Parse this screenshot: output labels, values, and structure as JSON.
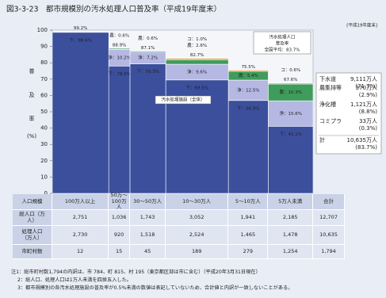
{
  "chart_data": {
    "type": "bar",
    "stacked": true,
    "title": "図3-3-23　都市規模別の汚水処理人口普及率（平成19年度末）",
    "period_label": "[平成19年度末]",
    "ylabel": [
      "普",
      "及",
      "率",
      "(%)"
    ],
    "ylim": [
      0,
      100
    ],
    "yticks": [
      0,
      10,
      20,
      30,
      40,
      50,
      60,
      70,
      80,
      90,
      100
    ],
    "categories": [
      "100万人以上",
      "50万〜100万人",
      "30〜50万人",
      "10〜30万人",
      "5〜10万人",
      "5万人未満"
    ],
    "series": [
      {
        "name": "下水道",
        "color": "#3b4f9c",
        "values": [
          98.6,
          78.0,
          79.3,
          69.5,
          56.9,
          41.1
        ],
        "value_labels": [
          "下：98.6%",
          "下：78.0%",
          "下：79.3%",
          "下：69.5%",
          "下：56.9%",
          "下：41.1%"
        ],
        "total_label": "9,111万人",
        "share_label": "(71.7%)"
      },
      {
        "name": "浄化槽",
        "color": "#b5b8e2",
        "values": [
          null,
          10.2,
          7.2,
          9.6,
          12.5,
          15.6
        ],
        "value_labels": [
          null,
          "浄：10.2%",
          "浄：7.2%",
          "浄：9.6%",
          "浄：12.5%",
          "浄：15.6%"
        ],
        "total_label": "1,121万人",
        "share_label": "(8.8%)"
      },
      {
        "name": "農集排等",
        "color": "#3f9c5c",
        "values": [
          null,
          0.6,
          0.6,
          2.6,
          5.4,
          10.3
        ],
        "value_labels": [
          null,
          "農：0.6%",
          "農：0.6%",
          "農：2.6%",
          "農：5.4%",
          "農：10.3%"
        ],
        "total_label": "370万人",
        "share_label": "(2.9%)"
      },
      {
        "name": "コミプラ",
        "color": "#e39a3c",
        "values": [
          null,
          null,
          null,
          1.0,
          0.7,
          0.6
        ],
        "value_labels": [
          null,
          null,
          null,
          "コ：1.0%",
          null,
          "コ：0.6%"
        ],
        "total_label": "33万人",
        "share_label": "(0.3%)"
      }
    ],
    "totals": {
      "values": [
        99.2,
        88.9,
        87.1,
        82.7,
        75.5,
        67.6
      ],
      "value_labels": [
        "99.2%",
        "88.9%",
        "87.1%",
        "82.7%",
        "75.5%",
        "67.6%"
      ]
    },
    "sum_row": {
      "name": "計",
      "total_label": "10,635万人",
      "share_label": "(83.7%)"
    },
    "annotation": "汚水処理施設（全体）",
    "national_box": [
      "汚水処理人口",
      "普及率",
      "全国平均：83.7%"
    ]
  },
  "table": {
    "header": {
      "first": "人口規模",
      "last": "合計"
    },
    "rows": [
      {
        "label": "総人口（万人）",
        "cells": [
          "2,751",
          "1,036",
          "1,743",
          "3,052",
          "1,941",
          "2,185"
        ],
        "total": "12,707"
      },
      {
        "label": "処理人口（万人）",
        "cells": [
          "2,730",
          "920",
          "1,518",
          "2,524",
          "1,465",
          "1,478"
        ],
        "total": "10,635"
      },
      {
        "label": "市町村数",
        "cells": [
          "12",
          "15",
          "45",
          "189",
          "279",
          "1,254"
        ],
        "total": "1,794"
      }
    ]
  },
  "notes": [
    "注1：総市町村数1,794の内訳は、市 784、町 815、村 195（東京都区部は市に含む）（平成20年3月31日現在）",
    "2：総人口、処理人口は1万人未満を四捨五入した。",
    "3：都市規模別の各汚水処理施設の普及率が0.5%未満の数値は表記していないため、合計値と内訳が一致しないことがある。"
  ]
}
